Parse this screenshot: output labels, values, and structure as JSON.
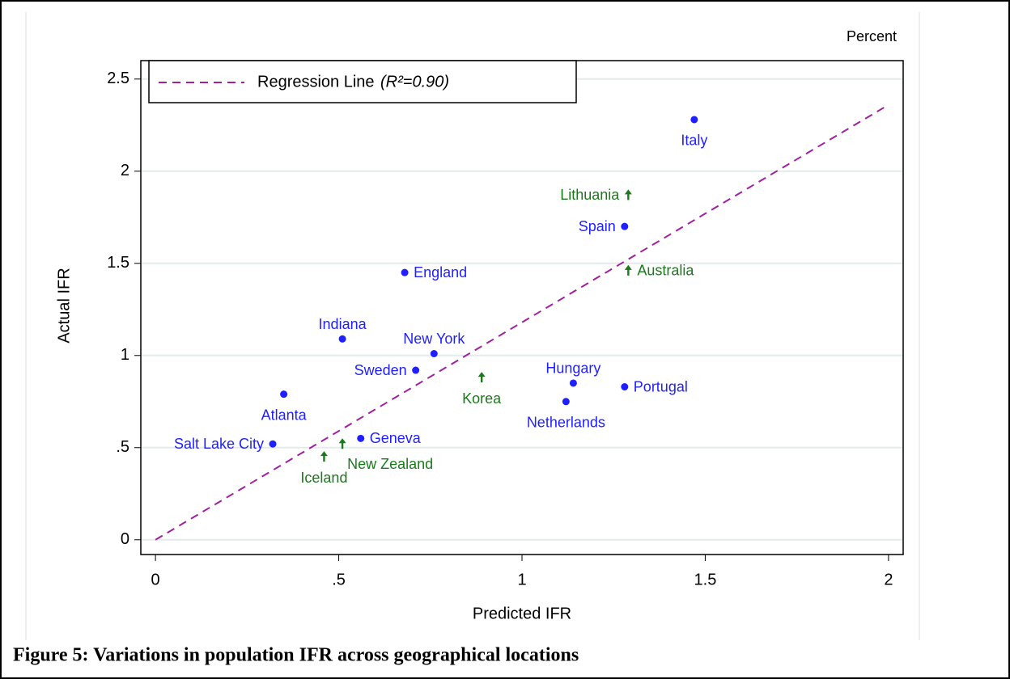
{
  "chart_data": {
    "type": "scatter",
    "unit_label": "Percent",
    "xlabel": "Predicted IFR",
    "ylabel": "Actual IFR",
    "xlim": [
      -0.04,
      2.04
    ],
    "ylim": [
      -0.08,
      2.6
    ],
    "xticks": [
      0,
      {
        "value": 0.5,
        "label": ".5"
      },
      1,
      1.5,
      2
    ],
    "yticks": [
      0,
      {
        "value": 0.5,
        "label": ".5"
      },
      1,
      1.5,
      2,
      2.5
    ],
    "grid": true,
    "series": [
      {
        "marker": "circle",
        "color": "#1f1fff",
        "labels": [
          "Italy",
          "Spain",
          "England",
          "Indiana",
          "New York",
          "Sweden",
          "Hungary",
          "Portugal",
          "Netherlands",
          "Atlanta",
          "Geneva",
          "Salt Lake City"
        ],
        "x": [
          1.47,
          1.28,
          0.68,
          0.51,
          0.76,
          0.71,
          1.14,
          1.28,
          1.12,
          0.35,
          0.56,
          0.32
        ],
        "values": [
          2.28,
          1.7,
          1.45,
          1.09,
          1.01,
          0.92,
          0.85,
          0.83,
          0.75,
          0.79,
          0.55,
          0.52
        ]
      },
      {
        "marker": "arrow",
        "color": "#1a7a1a",
        "labels": [
          "Lithuania",
          "Australia",
          "Korea",
          "New Zealand",
          "Iceland"
        ],
        "x": [
          1.29,
          1.29,
          0.89,
          0.51,
          0.46
        ],
        "values": [
          1.87,
          1.46,
          0.88,
          0.52,
          0.45
        ]
      }
    ],
    "regression": {
      "name": "Regression Line",
      "annotation": "(R²=0.90)",
      "color": "#a020a0",
      "x": [
        0,
        2
      ],
      "values": [
        0,
        2.36
      ]
    },
    "caption": "Figure 5: Variations in population IFR across geographical locations"
  }
}
